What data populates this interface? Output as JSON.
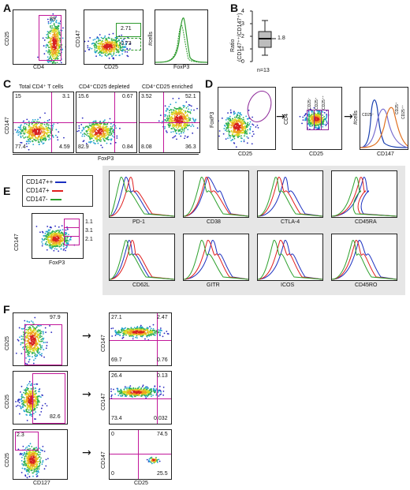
{
  "panels": {
    "A": {
      "letter": "A",
      "plot1": {
        "ylabel": "CD25",
        "xlabel": "CD4",
        "gate_value": "89"
      },
      "plot2": {
        "ylabel": "CD147",
        "xlabel": "CD25",
        "upper_gate": "2.71",
        "lower_gate": "0.73"
      },
      "plot3": {
        "ylabel": "#cells",
        "xlabel": "FoxP3"
      }
    },
    "B": {
      "letter": "B",
      "ylabel_line1": "Ratio",
      "ylabel_line2": "(CD147⁺⁺/CD147⁺)",
      "median_label": "1.8",
      "n_label": "n=13",
      "yticks": [
        "0",
        "1",
        "2",
        "3",
        "4"
      ]
    },
    "C": {
      "letter": "C",
      "titles": [
        "Total CD4⁺ T cells",
        "CD4⁺CD25 depleted",
        "CD4⁺CD25 enriched"
      ],
      "ylabel": "CD147",
      "xlabel": "FoxP3",
      "quadrants": [
        {
          "ul": "15",
          "ur": "3.1",
          "ll": "77.4",
          "lr": "4.59"
        },
        {
          "ul": "15.6",
          "ur": "0.67",
          "ll": "82.9",
          "lr": "0.84"
        },
        {
          "ul": "3.52",
          "ur": "52.1",
          "ll": "8.08",
          "lr": "36.3"
        }
      ]
    },
    "D": {
      "letter": "D",
      "plot1": {
        "ylabel": "FoxP3",
        "xlabel": "CD25"
      },
      "plot2": {
        "ylabel": "CD4",
        "xlabel": "CD25",
        "gates": [
          "CD25⁻",
          "CD25⁺",
          "CD25⁺⁺"
        ]
      },
      "plot3": {
        "ylabel": "#cells",
        "xlabel": "CD147",
        "labels": [
          "CD25⁻",
          "CD25⁺",
          "CD25⁺⁺"
        ]
      },
      "colors": {
        "neg": "#e07020",
        "pos": "#1a40b0",
        "pp": "#7a6fd0"
      }
    },
    "E": {
      "letter": "E",
      "legend": [
        {
          "label": "CD147++",
          "color": "#1a2fc0"
        },
        {
          "label": "CD147+",
          "color": "#e01e1e"
        },
        {
          "label": "CD147-",
          "color": "#2ca02c"
        }
      ],
      "scatter": {
        "ylabel": "CD147",
        "xlabel": "FoxP3",
        "gates": [
          "1.1",
          "3.1",
          "2.1"
        ]
      },
      "markers": [
        "PD-1",
        "CD38",
        "CTLA-4",
        "CD45RA",
        "CD62L",
        "GITR",
        "ICOS",
        "CD45RO"
      ]
    },
    "F": {
      "letter": "F",
      "rows": [
        {
          "left": {
            "ylabel": "CD25",
            "gate": "97.9"
          },
          "right": {
            "ylabel": "CD147",
            "ul": "27.1",
            "ur": "2.47",
            "ll": "69.7",
            "lr": "0.76"
          }
        },
        {
          "left": {
            "ylabel": "CD25",
            "gate": "82.6"
          },
          "right": {
            "ylabel": "CD147",
            "ul": "26.4",
            "ur": "0.13",
            "ll": "73.4",
            "lr": "0.032"
          }
        },
        {
          "left": {
            "ylabel": "CD25",
            "gate": "2.3"
          },
          "right": {
            "ylabel": "CD147",
            "ul": "0",
            "ur": "74.5",
            "ll": "0",
            "lr": "25.5"
          }
        }
      ],
      "xlabel_left": "CD127",
      "xlabel_right": "CD25",
      "arrow": "→"
    }
  }
}
